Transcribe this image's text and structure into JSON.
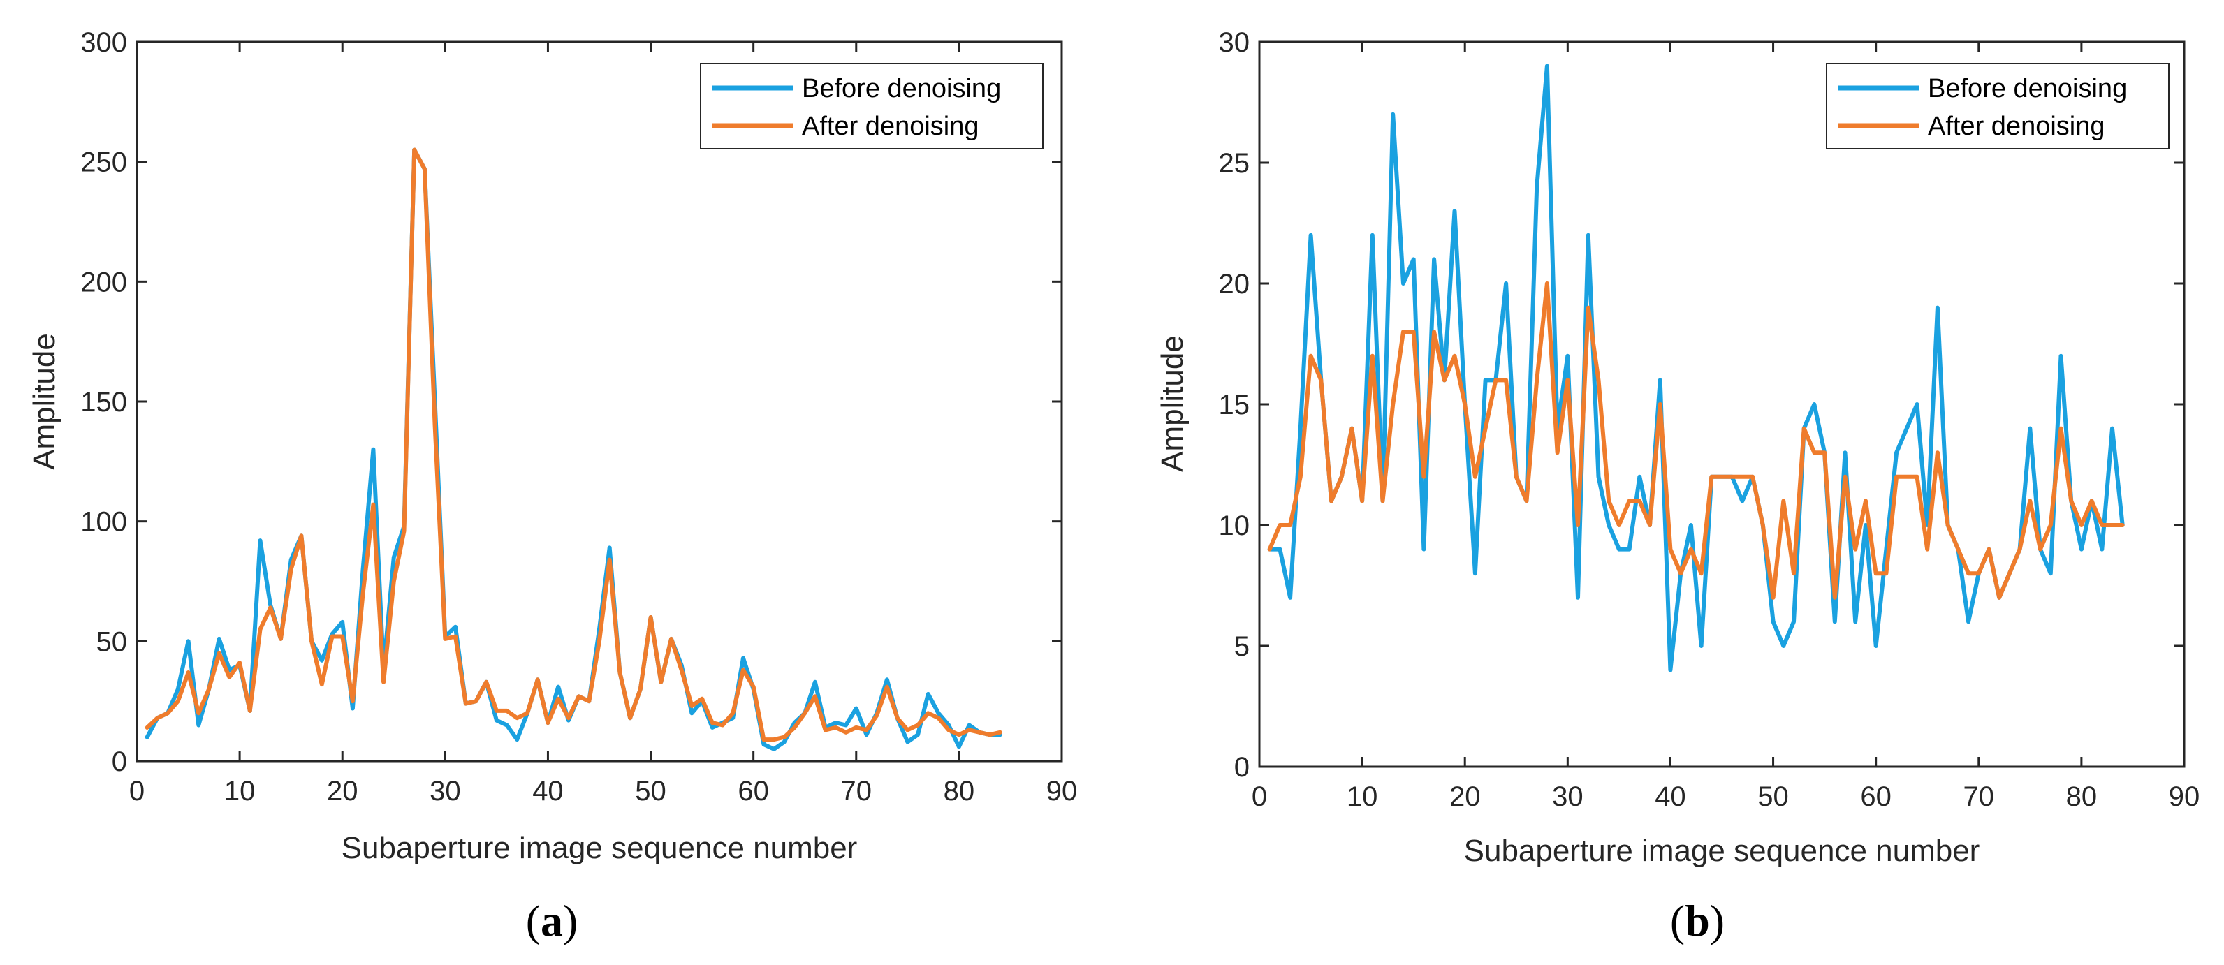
{
  "chart_data": [
    {
      "type": "line",
      "panel": "a",
      "caption_open": "(",
      "caption_letter": "a",
      "caption_close": ")",
      "xlabel": "Subaperture image sequence number",
      "ylabel": "Amplitude",
      "xlim": [
        0,
        90
      ],
      "ylim": [
        0,
        300
      ],
      "xticks": [
        0,
        10,
        20,
        30,
        40,
        50,
        60,
        70,
        80,
        90
      ],
      "yticks": [
        0,
        50,
        100,
        150,
        200,
        250,
        300
      ],
      "grid": false,
      "legend_position": "top-right",
      "x": [
        1,
        2,
        3,
        4,
        5,
        6,
        7,
        8,
        9,
        10,
        11,
        12,
        13,
        14,
        15,
        16,
        17,
        18,
        19,
        20,
        21,
        22,
        23,
        24,
        25,
        26,
        27,
        28,
        29,
        30,
        31,
        32,
        33,
        34,
        35,
        36,
        37,
        38,
        39,
        40,
        41,
        42,
        43,
        44,
        45,
        46,
        47,
        48,
        49,
        50,
        51,
        52,
        53,
        54,
        55,
        56,
        57,
        58,
        59,
        60,
        61,
        62,
        63,
        64,
        65,
        66,
        67,
        68,
        69,
        70,
        71,
        72,
        73,
        74,
        75,
        76,
        77,
        78,
        79,
        80,
        81,
        82,
        83,
        84
      ],
      "series": [
        {
          "name": "Before denoising",
          "color": "#1aa1e0",
          "values": [
            10,
            18,
            20,
            30,
            50,
            15,
            30,
            51,
            38,
            40,
            21,
            92,
            65,
            51,
            84,
            94,
            50,
            42,
            53,
            58,
            22,
            80,
            130,
            38,
            85,
            98,
            255,
            247,
            150,
            52,
            56,
            24,
            25,
            33,
            17,
            15,
            9,
            20,
            34,
            16,
            31,
            17,
            27,
            25,
            55,
            89,
            37,
            18,
            30,
            60,
            33,
            51,
            40,
            20,
            25,
            14,
            16,
            18,
            43,
            30,
            7,
            5,
            8,
            16,
            20,
            33,
            14,
            16,
            15,
            22,
            11,
            20,
            34,
            18,
            8,
            11,
            28,
            20,
            15,
            6,
            15,
            12,
            11,
            11
          ]
        },
        {
          "name": "After denoising",
          "color": "#ef7c2c",
          "values": [
            14,
            18,
            20,
            25,
            37,
            20,
            30,
            45,
            35,
            41,
            21,
            55,
            64,
            51,
            80,
            94,
            50,
            32,
            52,
            52,
            25,
            70,
            107,
            33,
            75,
            96,
            255,
            247,
            140,
            51,
            52,
            24,
            25,
            33,
            21,
            21,
            18,
            20,
            34,
            16,
            26,
            18,
            27,
            25,
            50,
            84,
            37,
            18,
            30,
            60,
            33,
            51,
            38,
            23,
            26,
            16,
            15,
            20,
            38,
            31,
            9,
            9,
            10,
            14,
            20,
            27,
            13,
            14,
            12,
            14,
            13,
            19,
            31,
            18,
            13,
            15,
            20,
            18,
            13,
            11,
            13,
            12,
            11,
            12
          ]
        }
      ]
    },
    {
      "type": "line",
      "panel": "b",
      "caption_open": "(",
      "caption_letter": "b",
      "caption_close": ")",
      "xlabel": "Subaperture image sequence number",
      "ylabel": "Amplitude",
      "xlim": [
        0,
        90
      ],
      "ylim": [
        0,
        30
      ],
      "xticks": [
        0,
        10,
        20,
        30,
        40,
        50,
        60,
        70,
        80,
        90
      ],
      "yticks": [
        0,
        5,
        10,
        15,
        20,
        25,
        30
      ],
      "grid": false,
      "legend_position": "top-right",
      "x": [
        1,
        2,
        3,
        4,
        5,
        6,
        7,
        8,
        9,
        10,
        11,
        12,
        13,
        14,
        15,
        16,
        17,
        18,
        19,
        20,
        21,
        22,
        23,
        24,
        25,
        26,
        27,
        28,
        29,
        30,
        31,
        32,
        33,
        34,
        35,
        36,
        37,
        38,
        39,
        40,
        41,
        42,
        43,
        44,
        45,
        46,
        47,
        48,
        49,
        50,
        51,
        52,
        53,
        54,
        55,
        56,
        57,
        58,
        59,
        60,
        61,
        62,
        63,
        64,
        65,
        66,
        67,
        68,
        69,
        70,
        71,
        72,
        73,
        74,
        75,
        76,
        77,
        78,
        79,
        80,
        81,
        82,
        83,
        84
      ],
      "series": [
        {
          "name": "Before denoising",
          "color": "#1aa1e0",
          "values": [
            9,
            9,
            7,
            14,
            22,
            16,
            11,
            12,
            14,
            11,
            22,
            11,
            27,
            20,
            21,
            9,
            21,
            16,
            23,
            15,
            8,
            16,
            16,
            20,
            12,
            11,
            24,
            29,
            14,
            17,
            7,
            22,
            12,
            10,
            9,
            9,
            12,
            10,
            16,
            4,
            8,
            10,
            5,
            12,
            12,
            12,
            11,
            12,
            10,
            6,
            5,
            6,
            14,
            15,
            13,
            6,
            13,
            6,
            10,
            5,
            9,
            13,
            14,
            15,
            10,
            19,
            10,
            9,
            6,
            8,
            9,
            7,
            8,
            9,
            14,
            9,
            8,
            17,
            11,
            9,
            11,
            9,
            14,
            10
          ]
        },
        {
          "name": "After denoising",
          "color": "#ef7c2c",
          "values": [
            9,
            10,
            10,
            12,
            17,
            16,
            11,
            12,
            14,
            11,
            17,
            11,
            15,
            18,
            18,
            12,
            18,
            16,
            17,
            15,
            12,
            14,
            16,
            16,
            12,
            11,
            16,
            20,
            13,
            16,
            10,
            19,
            16,
            11,
            10,
            11,
            11,
            10,
            15,
            9,
            8,
            9,
            8,
            12,
            12,
            12,
            12,
            12,
            10,
            7,
            11,
            8,
            14,
            13,
            13,
            7,
            12,
            9,
            11,
            8,
            8,
            12,
            12,
            12,
            9,
            13,
            10,
            9,
            8,
            8,
            9,
            7,
            8,
            9,
            11,
            9,
            10,
            14,
            11,
            10,
            11,
            10,
            10,
            10
          ]
        }
      ]
    }
  ]
}
